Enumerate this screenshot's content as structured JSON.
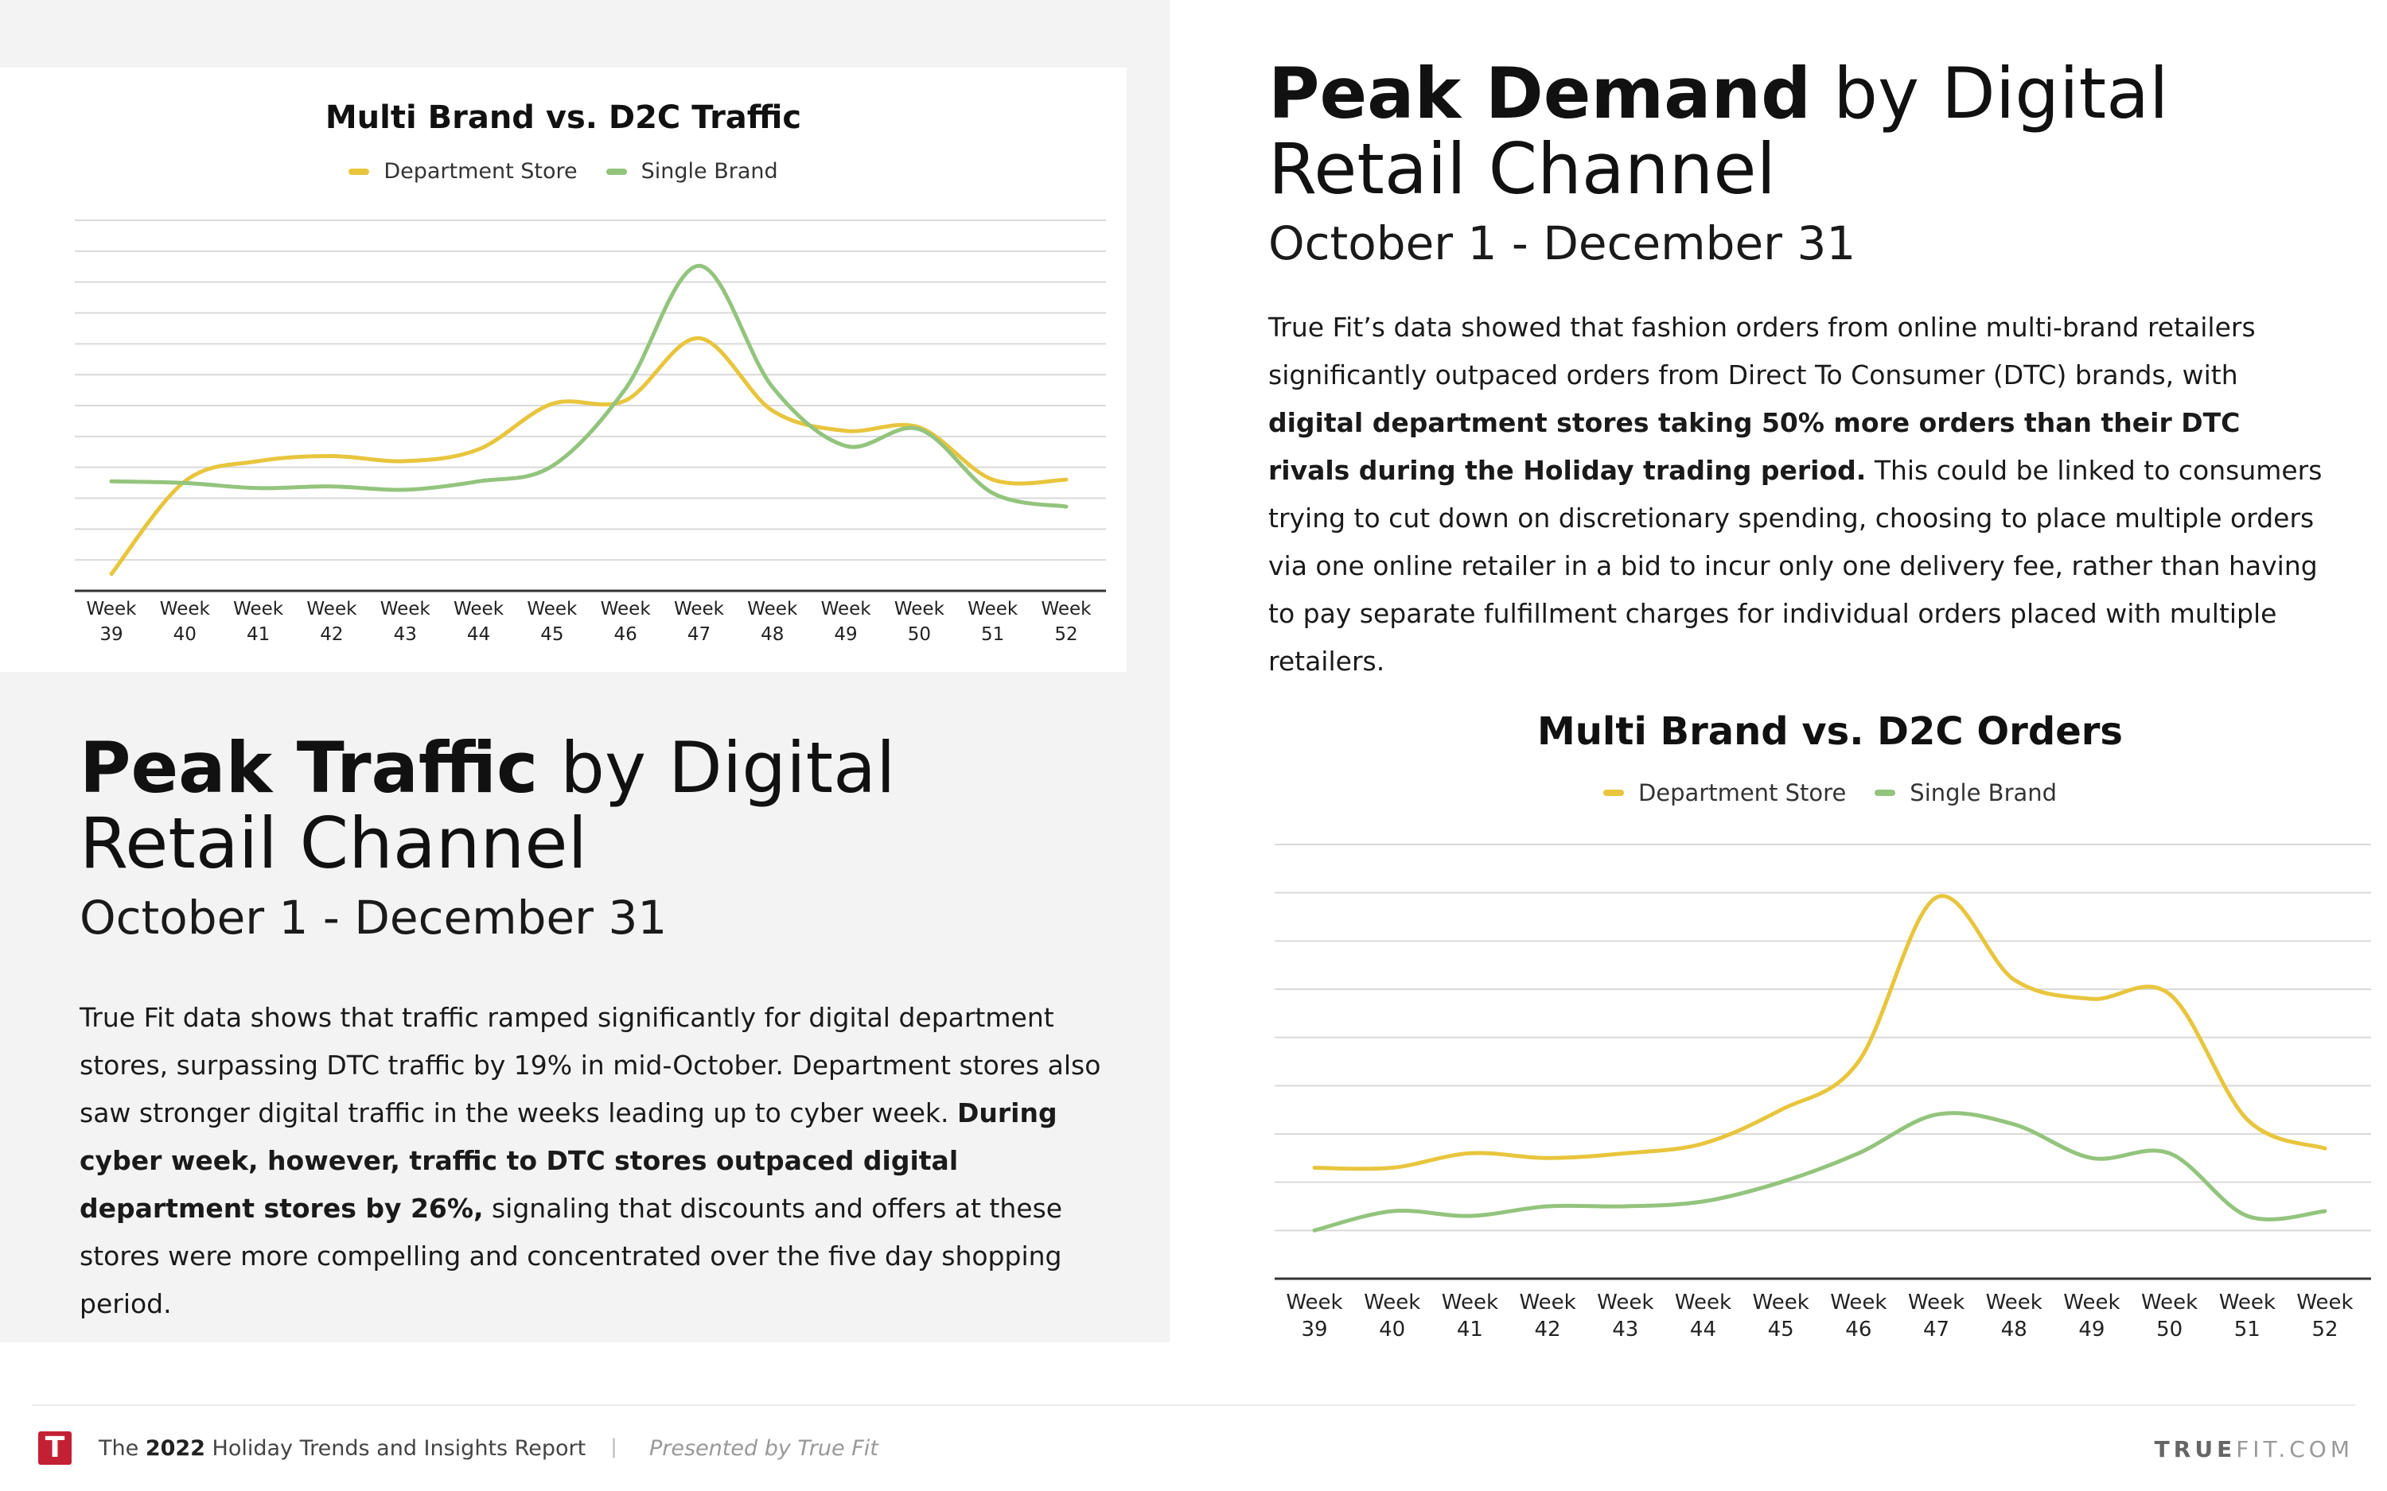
{
  "colors": {
    "department_store": "#e8c53d",
    "single_brand": "#93c47d",
    "panel_bg": "#f3f3f3",
    "logo_red": "#c42034"
  },
  "traffic_section": {
    "heading_bold": "Peak Traffic",
    "heading_light": " by Digital",
    "heading_line2": "Retail Channel",
    "date_range": "October 1 - December 31",
    "para": {
      "p1": "True Fit data shows that traffic ramped significantly for digital department stores, surpassing DTC traffic by 19% in mid-October. Department stores also saw stronger digital traffic in the weeks leading up to cyber week. ",
      "bold": "During cyber week, however, traffic to DTC stores outpaced digital department stores by 26%,",
      "p2": " signaling that discounts and offers at these stores were more compelling and concentrated over the five day shopping period."
    }
  },
  "demand_section": {
    "heading_bold": "Peak Demand",
    "heading_light": " by Digital",
    "heading_line2": "Retail Channel",
    "date_range": "October 1 - December 31",
    "para": {
      "p1": "True Fit’s data showed that fashion orders from online multi-brand retailers significantly outpaced orders from Direct To Consumer (DTC) brands, with ",
      "bold": "digital department stores taking 50% more orders than their DTC rivals during the Holiday trading period.",
      "p2": "  This could be linked to consumers trying to cut down on discretionary spending, choosing to place multiple orders via one online retailer in a bid to incur only one delivery fee, rather than having to pay separate fulfillment charges for individual orders placed with multiple retailers."
    }
  },
  "chart_data": [
    {
      "type": "line",
      "title": "Multi Brand vs. D2C Traffic",
      "categories": [
        "Week 39",
        "Week 40",
        "Week 41",
        "Week 42",
        "Week 43",
        "Week 44",
        "Week 45",
        "Week 46",
        "Week 47",
        "Week 48",
        "Week 49",
        "Week 50",
        "Week 51",
        "Week 52"
      ],
      "series": [
        {
          "name": "Department Store",
          "color": "#e8c53d",
          "values": [
            1.0,
            6.5,
            7.7,
            8.0,
            7.7,
            8.4,
            11.1,
            11.3,
            15.0,
            10.7,
            9.5,
            9.7,
            6.6,
            6.6
          ]
        },
        {
          "name": "Single Brand",
          "color": "#93c47d",
          "values": [
            6.5,
            6.4,
            6.1,
            6.2,
            6.0,
            6.5,
            7.4,
            12.0,
            19.3,
            12.1,
            8.6,
            9.6,
            5.8,
            5.0
          ]
        }
      ],
      "ylim": [
        0,
        22
      ],
      "grid": true,
      "legend": "top"
    },
    {
      "type": "line",
      "title": "Multi Brand vs. D2C Orders",
      "categories": [
        "Week 39",
        "Week 40",
        "Week 41",
        "Week 42",
        "Week 43",
        "Week 44",
        "Week 45",
        "Week 46",
        "Week 47",
        "Week 48",
        "Week 49",
        "Week 50",
        "Week 51",
        "Week 52"
      ],
      "series": [
        {
          "name": "Department Store",
          "color": "#e8c53d",
          "values": [
            2.3,
            2.3,
            2.6,
            2.5,
            2.6,
            2.8,
            3.5,
            4.5,
            7.9,
            6.2,
            5.8,
            5.9,
            3.3,
            2.7
          ]
        },
        {
          "name": "Single Brand",
          "color": "#93c47d",
          "values": [
            1.0,
            1.4,
            1.3,
            1.5,
            1.5,
            1.6,
            2.0,
            2.6,
            3.4,
            3.2,
            2.5,
            2.6,
            1.3,
            1.4
          ]
        }
      ],
      "ylim": [
        0,
        9
      ],
      "grid": true,
      "legend": "top"
    }
  ],
  "footer": {
    "logo_letter": "T",
    "report_pre": "The ",
    "report_year": "2022",
    "report_post": " Holiday Trends and Insights Report",
    "separator": "|",
    "presented_by": "Presented by True Fit",
    "brand_bold": "TRUE",
    "brand_rest": "FIT.COM"
  }
}
